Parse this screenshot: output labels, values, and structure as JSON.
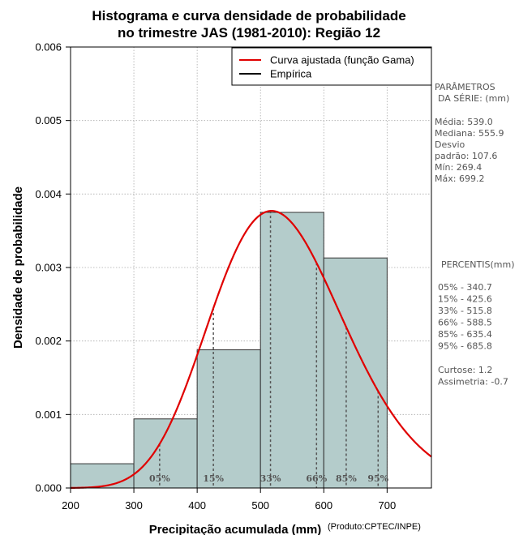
{
  "chart_data": {
    "type": "bar",
    "title_lines": [
      "Histograma e curva densidade de probabilidade",
      "no trimestre JAS (1981-2010): Região 12"
    ],
    "xlabel": "Precipitação acumulada (mm)",
    "ylabel": "Densidade de probabilidade",
    "credit": "(Produto:CPTEC/INPE)",
    "xlim": [
      200,
      770
    ],
    "ylim": [
      0,
      0.006
    ],
    "xticks": [
      200,
      300,
      400,
      500,
      600,
      700
    ],
    "yticks": [
      0,
      0.001,
      0.002,
      0.003,
      0.004,
      0.005,
      0.006
    ],
    "ytick_labels": [
      "0.000",
      "0.001",
      "0.002",
      "0.003",
      "0.004",
      "0.005",
      "0.006"
    ],
    "bins": [
      {
        "x0": 200,
        "x1": 300,
        "density": 0.00033
      },
      {
        "x0": 300,
        "x1": 400,
        "density": 0.00094
      },
      {
        "x0": 400,
        "x1": 500,
        "density": 0.00188
      },
      {
        "x0": 500,
        "x1": 600,
        "density": 0.00375
      },
      {
        "x0": 600,
        "x1": 700,
        "density": 0.00313
      }
    ],
    "gamma_fit": {
      "mean": 539.0,
      "sd": 107.6
    },
    "percentiles": [
      {
        "label": "05%",
        "value": 340.7
      },
      {
        "label": "15%",
        "value": 425.6
      },
      {
        "label": "33%",
        "value": 515.8
      },
      {
        "label": "66%",
        "value": 588.5
      },
      {
        "label": "85%",
        "value": 635.4
      },
      {
        "label": "95%",
        "value": 685.8
      }
    ],
    "legend": [
      {
        "label": "Curva ajustada (função Gama)",
        "color": "#e00000"
      },
      {
        "label": "Empírica",
        "color": "#000000"
      }
    ],
    "legend_position": "top-right",
    "grid": true,
    "colors": {
      "bar_fill": "#b4cccb",
      "bar_stroke": "#333333",
      "curve": "#e00000",
      "grid": "#aaaaaa",
      "percentile_line": "#555555"
    }
  },
  "side_panel": {
    "params_title": [
      "PARÂMETROS",
      "DA SÉRIE: (mm)"
    ],
    "params": [
      {
        "name": "Média:",
        "value": "539.0"
      },
      {
        "name": "Mediana:",
        "value": "555.9"
      },
      {
        "name": "Desvio",
        "value": ""
      },
      {
        "name": "padrão:",
        "value": "107.6"
      },
      {
        "name": "Mín:",
        "value": "269.4"
      },
      {
        "name": "Máx:",
        "value": "699.2"
      }
    ],
    "percentis_title": "PERCENTIS(mm)",
    "percentis": [
      {
        "name": "05% -",
        "value": "340.7"
      },
      {
        "name": "15% -",
        "value": "425.6"
      },
      {
        "name": "33% -",
        "value": "515.8"
      },
      {
        "name": "66% -",
        "value": "588.5"
      },
      {
        "name": "85% -",
        "value": "635.4"
      },
      {
        "name": "95% -",
        "value": "685.8"
      }
    ],
    "stats": [
      {
        "name": "Curtose:",
        "value": "1.2"
      },
      {
        "name": "Assimetria:",
        "value": "-0.7"
      }
    ]
  }
}
